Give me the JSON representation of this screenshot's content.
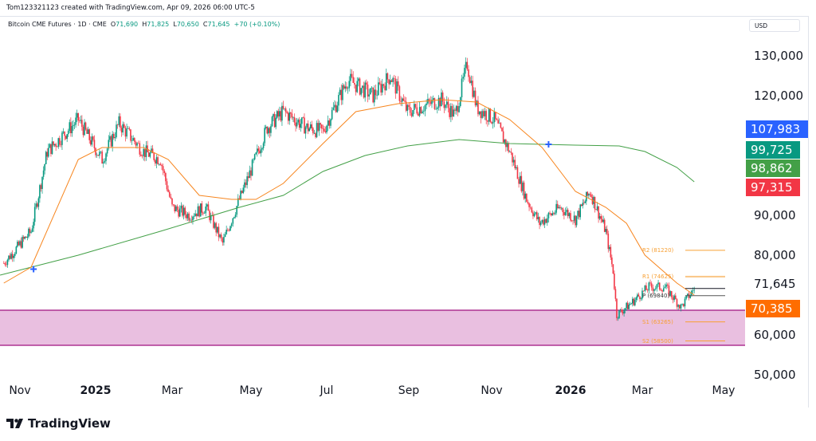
{
  "credit": "Tom123321123 created with TradingView.com, Apr 09, 2026 06:00 UTC-5",
  "legend": {
    "symbol": "Bitcoin CME Futures · 1D · CME",
    "o_label": "O",
    "o": "71,690",
    "h_label": "H",
    "h": "71,825",
    "l_label": "L",
    "l": "70,650",
    "c_label": "C",
    "c": "71,645",
    "change": "+70 (+0.10%)"
  },
  "currency": "USD",
  "brand": "TradingView",
  "colors": {
    "up": "#089981",
    "down": "#f23645",
    "ma_fast": "#f7861f",
    "ma_slow": "#43a047",
    "zone": "#e9bfe0",
    "zone_border": "#a0127f",
    "pivot": "#f7a035"
  },
  "chart_data": {
    "type": "candlestick",
    "ylim": [
      50000,
      130000
    ],
    "ytick_shown": [
      "130,000",
      "120,000",
      "90,000",
      "80,000",
      "60,000",
      "50,000"
    ],
    "ytick_shown_values": [
      130000,
      120000,
      90000,
      80000,
      60000,
      50000
    ],
    "xticks": [
      {
        "label": "Nov",
        "date": "2024-11-01",
        "bold": false
      },
      {
        "label": "2025",
        "date": "2025-01-01",
        "bold": true
      },
      {
        "label": "Mar",
        "date": "2025-03-01",
        "bold": false
      },
      {
        "label": "May",
        "date": "2025-05-01",
        "bold": false
      },
      {
        "label": "Jul",
        "date": "2025-07-01",
        "bold": false
      },
      {
        "label": "Sep",
        "date": "2025-09-01",
        "bold": false
      },
      {
        "label": "Nov",
        "date": "2025-11-01",
        "bold": false
      },
      {
        "label": "2026",
        "date": "2026-01-01",
        "bold": true
      },
      {
        "label": "Mar",
        "date": "2026-03-01",
        "bold": false
      },
      {
        "label": "May",
        "date": "2026-05-01",
        "bold": false
      }
    ],
    "approx_close_path": [
      [
        "2024-10-19",
        78000
      ],
      [
        "2024-11-10",
        86000
      ],
      [
        "2024-11-23",
        106000
      ],
      [
        "2024-12-18",
        114000
      ],
      [
        "2025-01-06",
        104000
      ],
      [
        "2025-01-19",
        113000
      ],
      [
        "2025-02-07",
        106000
      ],
      [
        "2025-02-20",
        104000
      ],
      [
        "2025-03-01",
        92000
      ],
      [
        "2025-03-14",
        90000
      ],
      [
        "2025-03-27",
        92000
      ],
      [
        "2025-04-09",
        83000
      ],
      [
        "2025-04-22",
        94000
      ],
      [
        "2025-05-14",
        112000
      ],
      [
        "2025-05-27",
        116000
      ],
      [
        "2025-06-15",
        112000
      ],
      [
        "2025-06-28",
        111000
      ],
      [
        "2025-07-17",
        124000
      ],
      [
        "2025-08-05",
        120000
      ],
      [
        "2025-08-18",
        125000
      ],
      [
        "2025-08-31",
        116000
      ],
      [
        "2025-09-25",
        119000
      ],
      [
        "2025-10-05",
        115000
      ],
      [
        "2025-10-14",
        128000
      ],
      [
        "2025-10-21",
        117000
      ],
      [
        "2025-11-03",
        114000
      ],
      [
        "2025-11-15",
        106000
      ],
      [
        "2025-11-28",
        94000
      ],
      [
        "2025-12-08",
        88000
      ],
      [
        "2025-12-24",
        92000
      ],
      [
        "2026-01-05",
        89000
      ],
      [
        "2026-01-17",
        96000
      ],
      [
        "2026-01-30",
        86000
      ],
      [
        "2026-02-05",
        76000
      ],
      [
        "2026-02-08",
        65000
      ],
      [
        "2026-02-20",
        68000
      ],
      [
        "2026-03-06",
        72000
      ],
      [
        "2026-03-18",
        72000
      ],
      [
        "2026-03-30",
        67000
      ],
      [
        "2026-04-09",
        71645
      ]
    ],
    "ma_fast": [
      [
        "2024-10-19",
        73000
      ],
      [
        "2024-11-10",
        77000
      ],
      [
        "2024-12-18",
        104000
      ],
      [
        "2025-01-06",
        107000
      ],
      [
        "2025-02-07",
        107000
      ],
      [
        "2025-02-26",
        104000
      ],
      [
        "2025-03-22",
        95000
      ],
      [
        "2025-04-16",
        94000
      ],
      [
        "2025-05-05",
        94000
      ],
      [
        "2025-05-27",
        98000
      ],
      [
        "2025-06-28",
        108000
      ],
      [
        "2025-07-23",
        116000
      ],
      [
        "2025-08-24",
        118000
      ],
      [
        "2025-09-25",
        119000
      ],
      [
        "2025-10-21",
        118400
      ],
      [
        "2025-11-15",
        114000
      ],
      [
        "2025-12-10",
        107000
      ],
      [
        "2026-01-05",
        96000
      ],
      [
        "2026-01-30",
        92000
      ],
      [
        "2026-02-16",
        88000
      ],
      [
        "2026-03-03",
        80000
      ],
      [
        "2026-03-27",
        73000
      ],
      [
        "2026-04-09",
        70000
      ]
    ],
    "ma_slow": [
      [
        "2024-10-16",
        75000
      ],
      [
        "2024-12-18",
        80000
      ],
      [
        "2025-02-20",
        86000
      ],
      [
        "2025-04-22",
        92000
      ],
      [
        "2025-05-27",
        95000
      ],
      [
        "2025-06-28",
        101000
      ],
      [
        "2025-07-30",
        105000
      ],
      [
        "2025-08-31",
        107400
      ],
      [
        "2025-10-08",
        109000
      ],
      [
        "2025-11-15",
        108000
      ],
      [
        "2026-01-05",
        107600
      ],
      [
        "2026-02-10",
        107400
      ],
      [
        "2026-03-03",
        106000
      ],
      [
        "2026-03-27",
        102000
      ],
      [
        "2026-04-09",
        98400
      ]
    ],
    "cross_markers": [
      [
        "2024-11-12",
        76500
      ],
      [
        "2025-12-15",
        107800
      ]
    ],
    "zone": {
      "top": 66200,
      "bottom": 57400
    },
    "pivots": [
      {
        "label": "R2 (81220)",
        "value": 81220
      },
      {
        "label": "R1 (74625)",
        "value": 74625
      },
      {
        "label": "P (69840)",
        "value": 69840
      },
      {
        "label": "S1 (63265)",
        "value": 63265
      },
      {
        "label": "S2 (58500)",
        "value": 58500
      }
    ],
    "last_price": {
      "label": "71,645",
      "value": 71645
    },
    "price_tags": [
      {
        "label": "107,983",
        "color": "#2962ff"
      },
      {
        "label": "99,725",
        "color": "#089981"
      },
      {
        "label": "98,862",
        "color": "#43a047"
      },
      {
        "label": "97,315",
        "color": "#f23645"
      },
      {
        "label": "70,385",
        "color": "#ff6d00"
      }
    ]
  }
}
